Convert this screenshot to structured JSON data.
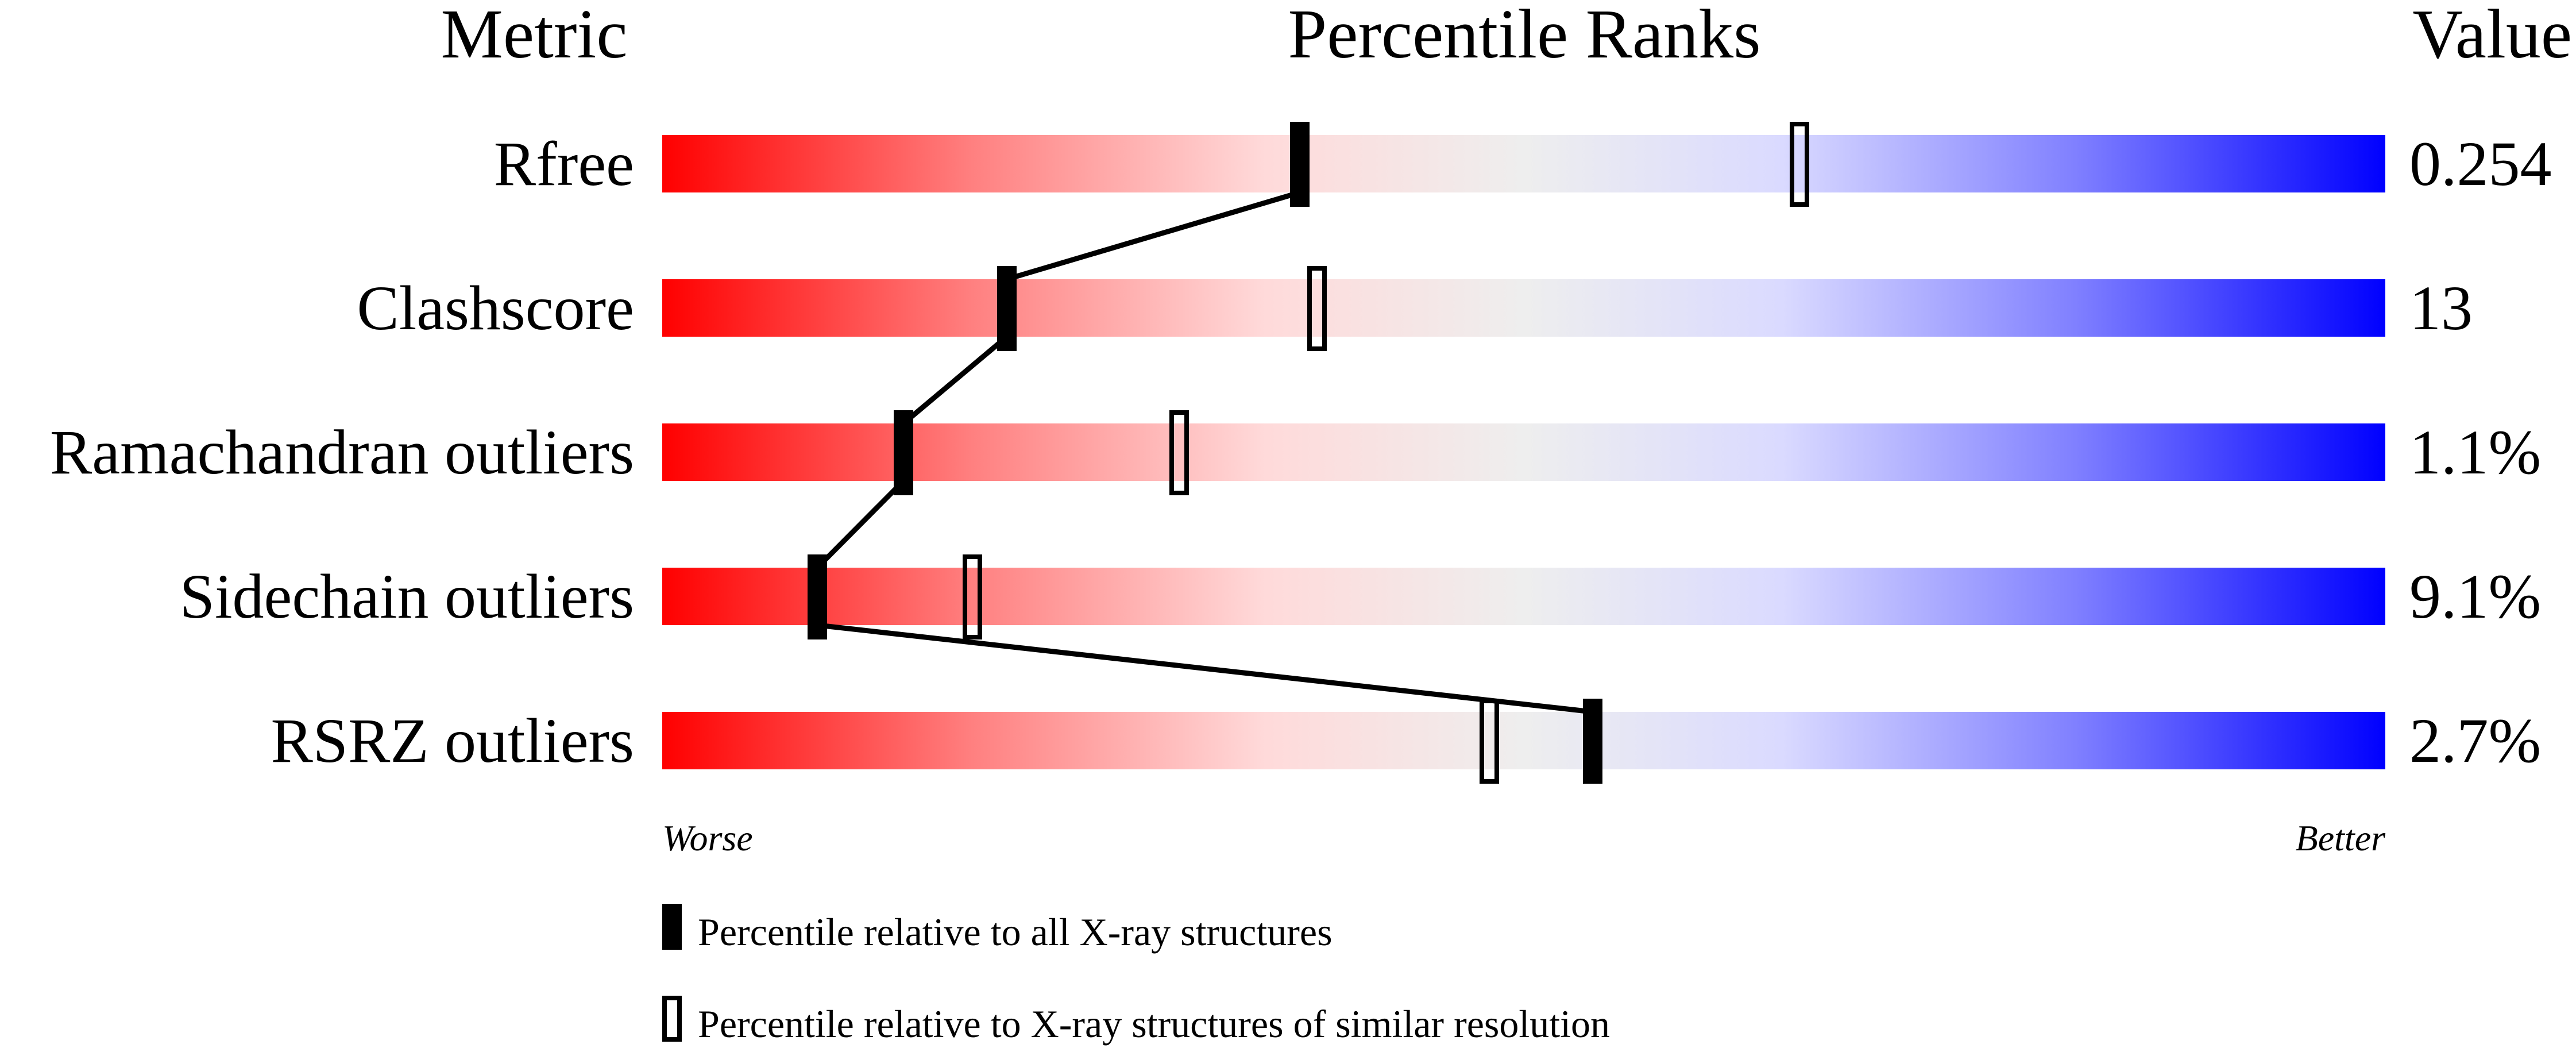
{
  "chart_data": {
    "type": "percentile-bar",
    "headers": {
      "metric": "Metric",
      "ranks": "Percentile Ranks",
      "value": "Value"
    },
    "xlim": [
      0,
      100
    ],
    "axis": {
      "left": "Worse",
      "right": "Better"
    },
    "colors": {
      "worse": "#ff0000",
      "middle": "#eeeeee",
      "better": "#0000ff",
      "marker": "#000000"
    },
    "metrics": [
      {
        "name": "Rfree",
        "value": "0.254",
        "percentile_all": 37,
        "percentile_similar": 66
      },
      {
        "name": "Clashscore",
        "value": "13",
        "percentile_all": 20,
        "percentile_similar": 38
      },
      {
        "name": "Ramachandran outliers",
        "value": "1.1%",
        "percentile_all": 14,
        "percentile_similar": 30
      },
      {
        "name": "Sidechain outliers",
        "value": "9.1%",
        "percentile_all": 9,
        "percentile_similar": 18
      },
      {
        "name": "RSRZ outliers",
        "value": "2.7%",
        "percentile_all": 54,
        "percentile_similar": 48
      }
    ],
    "legend": [
      {
        "marker": "filled",
        "label": "Percentile relative to all X-ray structures"
      },
      {
        "marker": "open",
        "label": "Percentile relative to X-ray structures of similar resolution"
      }
    ]
  }
}
